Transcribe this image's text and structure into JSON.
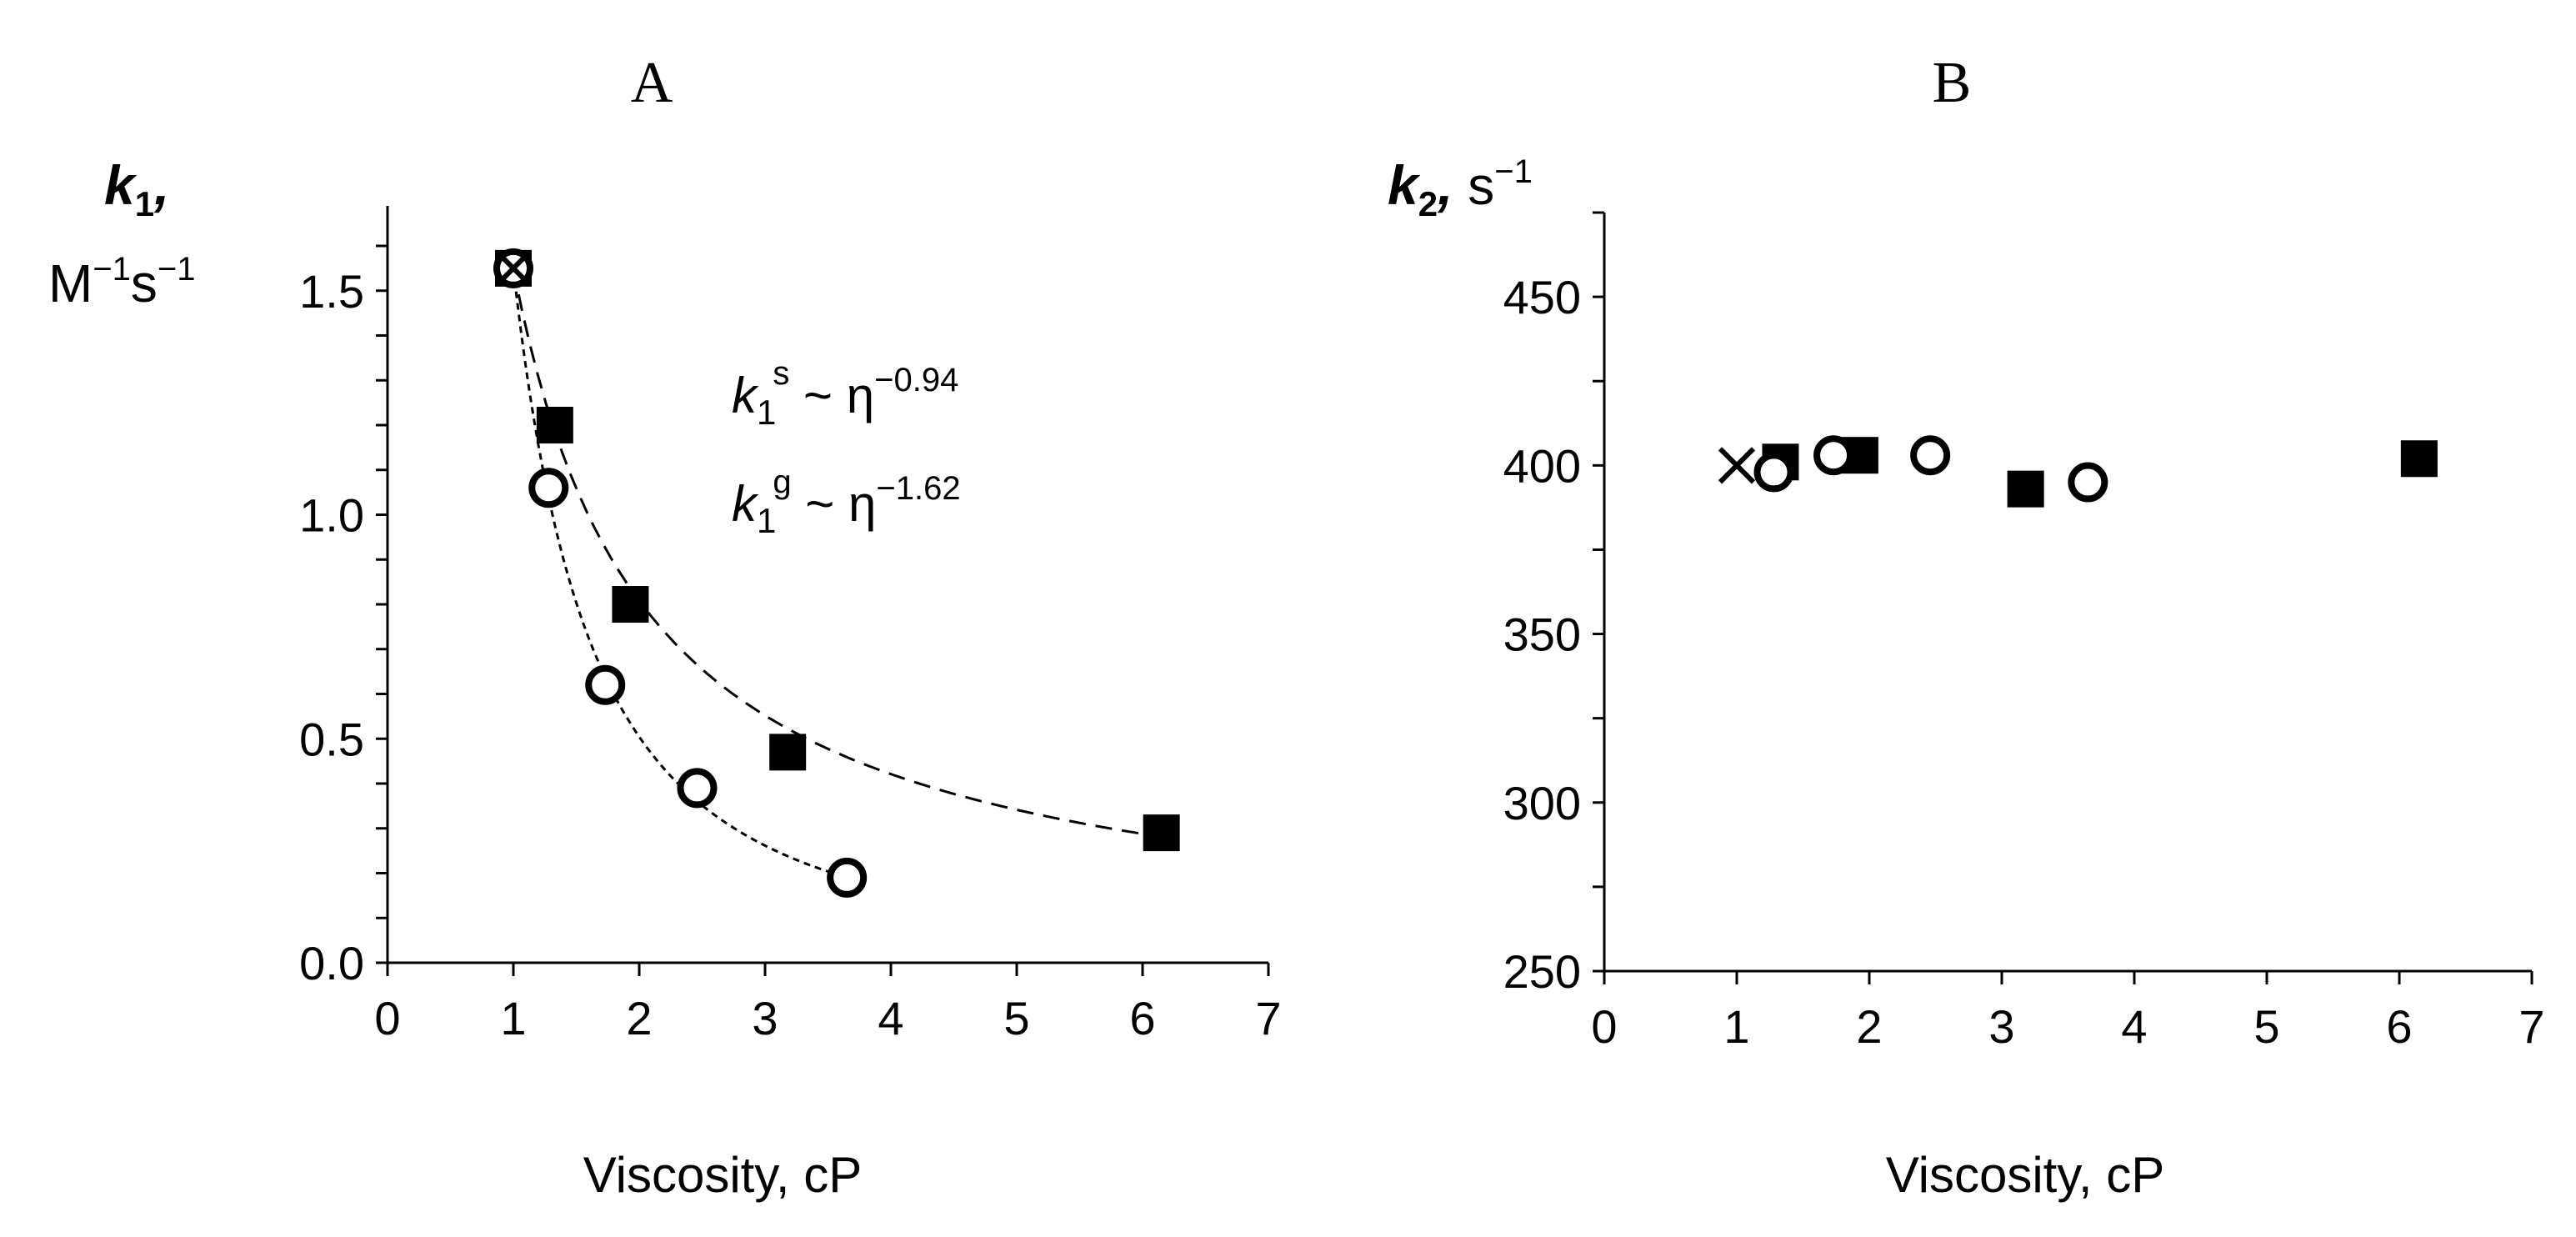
{
  "chart_data": [
    {
      "type": "scatter",
      "panel_title": "A",
      "xlabel": "Viscosity, cP",
      "ylabel": {
        "main": "k",
        "sub": "1",
        "comma": ",",
        "unit_line": "M",
        "unit_sup1": "−1",
        "unit_mid": "s",
        "unit_sup2": "−1"
      },
      "xlim": [
        0,
        7
      ],
      "ylim": [
        0,
        1.6
      ],
      "xticks": [
        0,
        1,
        2,
        3,
        4,
        5,
        6,
        7
      ],
      "yticks": [
        0.0,
        0.5,
        1.0,
        1.5
      ],
      "ytick_labels": [
        "0.0",
        "0.5",
        "1.0",
        "1.5"
      ],
      "annotations": [
        {
          "k": "k",
          "sub": "1",
          "sup": "s",
          "rest": " ~ η",
          "exp": "−0.94"
        },
        {
          "k": "k",
          "sub": "1",
          "sup": "g",
          "rest": " ~ η",
          "exp": "−1.62"
        }
      ],
      "series": [
        {
          "marker": "square",
          "x": [
            1.0,
            1.33,
            1.93,
            3.18,
            6.15
          ],
          "y": [
            1.55,
            1.2,
            0.8,
            0.47,
            0.29
          ]
        },
        {
          "marker": "circle",
          "x": [
            1.0,
            1.28,
            1.73,
            2.46,
            3.65
          ],
          "y": [
            1.55,
            1.06,
            0.62,
            0.39,
            0.19
          ]
        },
        {
          "marker": "x",
          "x": [
            1.0
          ],
          "y": [
            1.55
          ]
        }
      ],
      "fits": [
        {
          "style": "long-dash",
          "a": 1.55,
          "exponent": -0.94,
          "x_range": [
            1.0,
            6.15
          ]
        },
        {
          "style": "short-dash",
          "a": 1.55,
          "exponent": -1.62,
          "x_range": [
            1.0,
            3.65
          ]
        }
      ],
      "grid": false
    },
    {
      "type": "scatter",
      "panel_title": "B",
      "xlabel": "Viscosity, cP",
      "ylabel": {
        "main": "k",
        "sub": "2",
        "comma": ",",
        "unit": " s",
        "unit_sup": "−1"
      },
      "xlim": [
        0,
        7
      ],
      "ylim": [
        250,
        475
      ],
      "xticks": [
        0,
        1,
        2,
        3,
        4,
        5,
        6,
        7
      ],
      "yticks": [
        250,
        300,
        350,
        400,
        450
      ],
      "ytick_labels": [
        "250",
        "300",
        "350",
        "400",
        "450"
      ],
      "series": [
        {
          "marker": "square",
          "x": [
            1.33,
            1.93,
            3.18,
            6.15
          ],
          "y": [
            401,
            403,
            393,
            402
          ]
        },
        {
          "marker": "circle",
          "x": [
            1.28,
            1.73,
            2.46,
            3.65
          ],
          "y": [
            398,
            403,
            403,
            395
          ]
        },
        {
          "marker": "x",
          "x": [
            1.0
          ],
          "y": [
            400
          ]
        }
      ],
      "grid": false
    }
  ]
}
